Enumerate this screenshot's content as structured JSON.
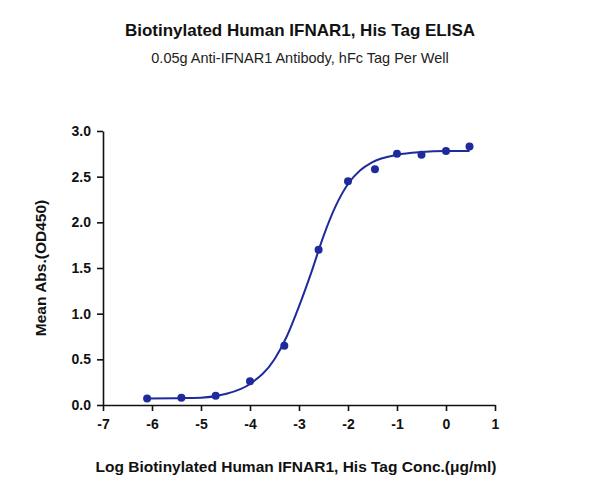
{
  "chart_data": {
    "type": "scatter",
    "title": "Biotinylated Human IFNAR1, His Tag ELISA",
    "subtitle": "0.05g Anti-IFNAR1 Antibody, hFc Tag Per Well",
    "x_label": "Log Biotinylated Human IFNAR1, His Tag Conc.(μg/ml)",
    "y_label": "Mean Abs.(OD450)",
    "xlim": [
      -7,
      1
    ],
    "xticks": [
      -7,
      -6,
      -5,
      -4,
      -3,
      -2,
      -1,
      0,
      1
    ],
    "ylim": [
      0,
      3
    ],
    "yticks": [
      {
        "value": 0,
        "label": "0.0"
      },
      0.5,
      {
        "value": 1,
        "label": "1.0"
      },
      1.5,
      {
        "value": 2,
        "label": "2.0"
      },
      2.5,
      {
        "value": 3,
        "label": "3.0"
      }
    ],
    "grid": false,
    "series": [
      {
        "type": "scatter",
        "marker": "circle",
        "color": "#1f2a9c",
        "x": [
          -6.1,
          -5.4,
          -4.7,
          -4.0,
          -3.3,
          -2.6,
          -2.0,
          -1.45,
          -1.0,
          -0.5,
          0.0,
          0.48
        ],
        "values": [
          0.07,
          0.08,
          0.1,
          0.26,
          0.65,
          1.7,
          2.45,
          2.58,
          2.75,
          2.74,
          2.78,
          2.83
        ]
      },
      {
        "type": "line",
        "line_style": "solid",
        "color": "#1f2a9c",
        "x": [
          -6.1,
          -5.5,
          -5.0,
          -4.5,
          -4.0,
          -3.5,
          -3.25,
          -3.0,
          -2.75,
          -2.5,
          -2.25,
          -2.0,
          -1.75,
          -1.5,
          -1.0,
          -0.5,
          0.0,
          0.48
        ],
        "values": [
          0.07,
          0.075,
          0.08,
          0.12,
          0.23,
          0.5,
          0.75,
          1.08,
          1.45,
          1.85,
          2.18,
          2.42,
          2.57,
          2.66,
          2.74,
          2.77,
          2.78,
          2.78
        ]
      }
    ]
  }
}
